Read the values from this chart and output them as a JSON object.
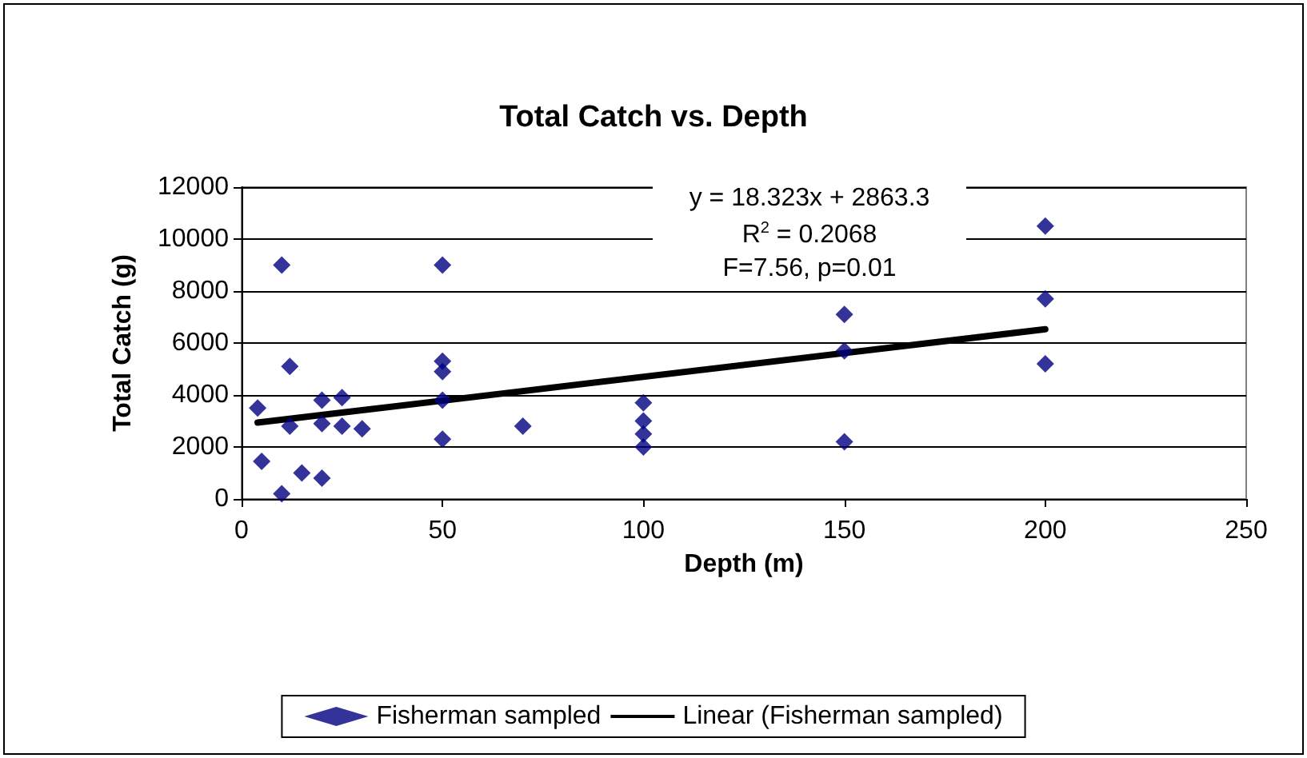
{
  "chart_data": {
    "type": "scatter",
    "title": "Total Catch vs. Depth",
    "xlabel": "Depth (m)",
    "ylabel": "Total Catch (g)",
    "annotations": [
      "y = 18.323x + 2863.3",
      "R$^{2}$ = 0.2068",
      "F=7.56, p=0.01"
    ],
    "series": [
      {
        "name": "Fisherman sampled",
        "color": "#000080",
        "marker": "diamond",
        "x": [
          10,
          50,
          12,
          4,
          12,
          20,
          25,
          20,
          25,
          30,
          5,
          15,
          20,
          10,
          50,
          50,
          50,
          50,
          70,
          100,
          100,
          100,
          100,
          150,
          150,
          150,
          200,
          200,
          200
        ],
        "values": [
          9000,
          9000,
          5100,
          3500,
          2800,
          3800,
          3900,
          2900,
          2800,
          2700,
          1450,
          1000,
          800,
          200,
          5300,
          4900,
          3800,
          2300,
          2800,
          3700,
          3000,
          2500,
          2000,
          7100,
          5700,
          2200,
          10500,
          7700,
          5200
        ]
      },
      {
        "name": "Linear (Fisherman sampled)",
        "type": "line",
        "color": "#000000",
        "marker": "none",
        "x": [
          4,
          200
        ],
        "values": [
          2940,
          6530
        ]
      }
    ],
    "xlim": [
      0,
      250
    ],
    "xticks": [
      0,
      50,
      100,
      150,
      200,
      250
    ],
    "ylim": [
      0,
      12000
    ],
    "yticks": [
      0,
      2000,
      4000,
      6000,
      8000,
      10000,
      12000
    ],
    "grid": "y",
    "legend": "bottom"
  }
}
